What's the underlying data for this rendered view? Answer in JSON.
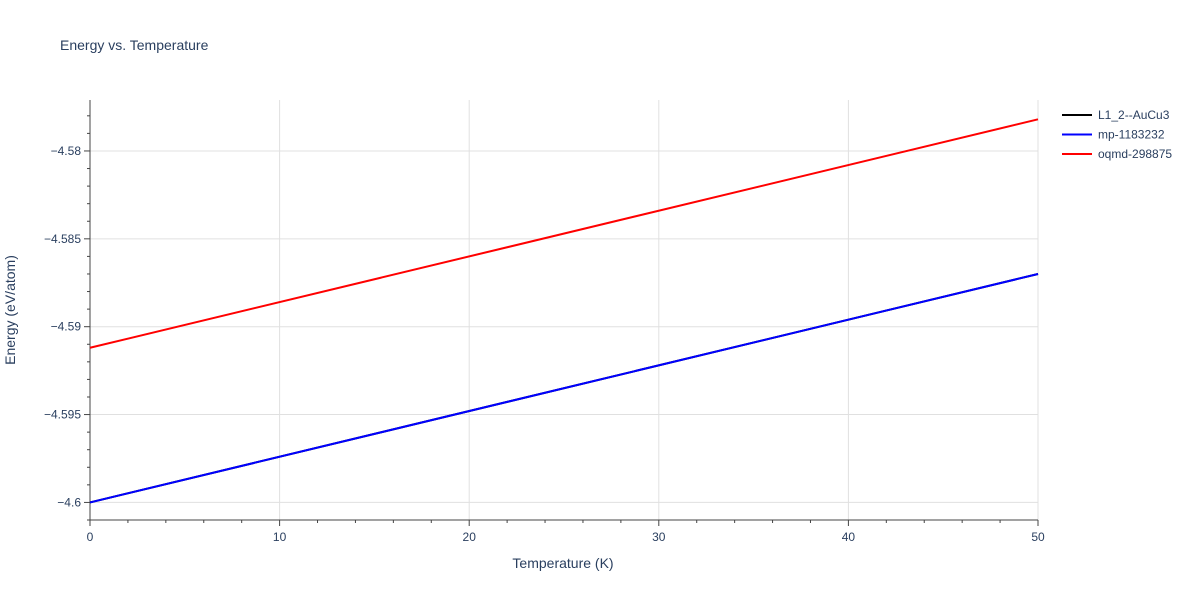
{
  "chart_data": {
    "type": "line",
    "title": "Energy vs. Temperature",
    "xlabel": "Temperature (K)",
    "ylabel": "Energy (eV/atom)",
    "xlim": [
      0,
      50
    ],
    "ylim": [
      -4.601,
      -4.5771
    ],
    "x_ticks": [
      0,
      10,
      20,
      30,
      40,
      50
    ],
    "x_tick_labels": [
      "0",
      "10",
      "20",
      "30",
      "40",
      "50"
    ],
    "y_ticks": [
      -4.6,
      -4.595,
      -4.59,
      -4.585,
      -4.58
    ],
    "y_tick_labels": [
      "−4.6",
      "−4.595",
      "−4.59",
      "−4.585",
      "−4.58"
    ],
    "grid": true,
    "legend_position": "top-right",
    "series": [
      {
        "name": "L1_2--AuCu3",
        "color": "#000000",
        "x": [
          0,
          50
        ],
        "y": [
          -4.6,
          -4.587
        ]
      },
      {
        "name": "mp-1183232",
        "color": "#0000ff",
        "x": [
          0,
          50
        ],
        "y": [
          -4.6,
          -4.587
        ]
      },
      {
        "name": "oqmd-298875",
        "color": "#ff0000",
        "x": [
          0,
          50
        ],
        "y": [
          -4.5912,
          -4.5782
        ]
      }
    ]
  }
}
